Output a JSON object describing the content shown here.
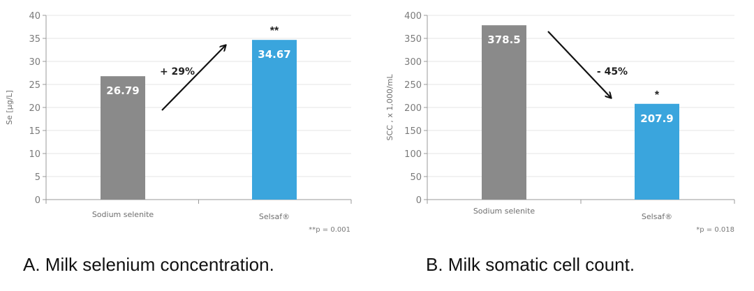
{
  "chart_data": [
    {
      "type": "bar",
      "ylabel": "Se [µg/L]",
      "ylim": [
        0,
        40
      ],
      "yticks": [
        0,
        5,
        10,
        15,
        20,
        25,
        30,
        35,
        40
      ],
      "grid": "horizontal",
      "categories": [
        "Sodium selenite",
        "Selsaf®"
      ],
      "values": [
        26.79,
        34.67
      ],
      "value_labels": [
        "26.79",
        "34.67"
      ],
      "bar_colors": [
        "#8a8a8a",
        "#3aa5dd"
      ],
      "significance": [
        "",
        "**"
      ],
      "annotation": "+ 29%",
      "note": "**p = 0.001",
      "caption": "A.    Milk selenium concentration."
    },
    {
      "type": "bar",
      "ylabel": "SCC , x 1,000/mL",
      "ylim": [
        0,
        400
      ],
      "yticks": [
        0,
        50,
        100,
        150,
        200,
        250,
        300,
        350,
        400
      ],
      "grid": "horizontal",
      "categories": [
        "Sodium selenite",
        "Selsaf®"
      ],
      "values": [
        378.5,
        207.9
      ],
      "value_labels": [
        "378.5",
        "207.9"
      ],
      "bar_colors": [
        "#8a8a8a",
        "#3aa5dd"
      ],
      "significance": [
        "",
        "*"
      ],
      "annotation": "- 45%",
      "note": "*p = 0.018",
      "caption": "B. Milk somatic cell count."
    }
  ]
}
